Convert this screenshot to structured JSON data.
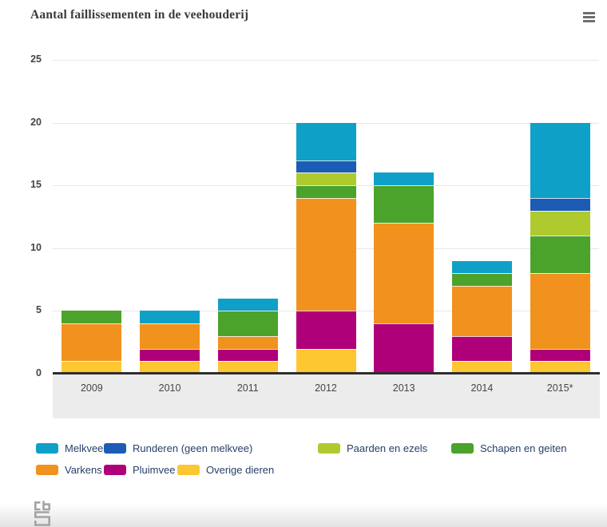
{
  "header": {
    "title": "Aantal faillissementen in de veehouderij",
    "menu_icon": "hamburger-menu-icon"
  },
  "chart_data": {
    "type": "bar",
    "stacked": true,
    "title": "Aantal faillissementen in de veehouderij",
    "categories": [
      "2009",
      "2010",
      "2011",
      "2012",
      "2013",
      "2014",
      "2015*"
    ],
    "y_ticks": [
      0,
      5,
      10,
      15,
      20,
      25
    ],
    "ylim": [
      0,
      25
    ],
    "grid": true,
    "legend_position": "bottom",
    "series": [
      {
        "name": "Overige dieren",
        "color": "#fdc731",
        "values": [
          1,
          1,
          1,
          2,
          0,
          1,
          1
        ]
      },
      {
        "name": "Pluimvee",
        "color": "#af0079",
        "values": [
          0,
          1,
          1,
          3,
          4,
          2,
          1
        ]
      },
      {
        "name": "Varkens",
        "color": "#f1921e",
        "values": [
          3,
          2,
          1,
          9,
          8,
          4,
          6
        ]
      },
      {
        "name": "Schapen en geiten",
        "color": "#4ba32b",
        "values": [
          1,
          0,
          2,
          1,
          3,
          1,
          3
        ]
      },
      {
        "name": "Paarden en ezels",
        "color": "#afca2e",
        "values": [
          0,
          0,
          0,
          1,
          0,
          0,
          2
        ]
      },
      {
        "name": "Runderen (geen melkvee)",
        "color": "#1d5cb4",
        "values": [
          0,
          0,
          0,
          1,
          0,
          0,
          1
        ]
      },
      {
        "name": "Melkvee",
        "color": "#0fa0c8",
        "values": [
          0,
          1,
          1,
          3,
          1,
          1,
          6
        ]
      }
    ],
    "legend_order": [
      "Melkvee",
      "Runderen (geen melkvee)",
      "Paarden en ezels",
      "Schapen en geiten",
      "Varkens",
      "Pluimvee",
      "Overige dieren"
    ]
  },
  "footer": {
    "logo": "cbs-logo"
  }
}
